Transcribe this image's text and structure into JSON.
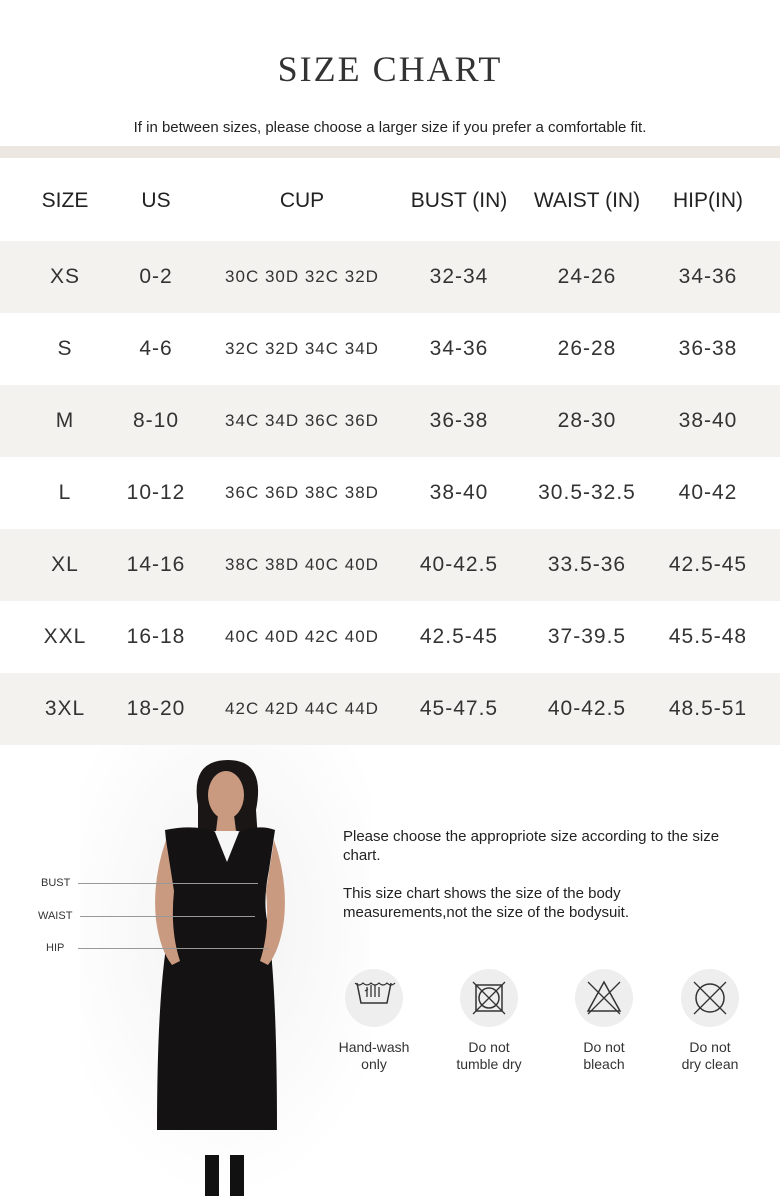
{
  "title": "SIZE CHART",
  "subtitle": "If in between sizes, please choose a larger size if you prefer a comfortable fit.",
  "colors": {
    "band": "#ece8e1",
    "row_shade": "#f4f2ee",
    "text": "#333333"
  },
  "table": {
    "headers": [
      "SIZE",
      "US",
      "CUP",
      "BUST (IN)",
      "WAIST (IN)",
      "HIP(IN)"
    ],
    "rows": [
      [
        "XS",
        "0-2",
        "30C 30D 32C 32D",
        "32-34",
        "24-26",
        "34-36"
      ],
      [
        "S",
        "4-6",
        "32C 32D 34C 34D",
        "34-36",
        "26-28",
        "36-38"
      ],
      [
        "M",
        "8-10",
        "34C 34D 36C 36D",
        "36-38",
        "28-30",
        "38-40"
      ],
      [
        "L",
        "10-12",
        "36C 36D 38C 38D",
        "38-40",
        "30.5-32.5",
        "40-42"
      ],
      [
        "XL",
        "14-16",
        "38C 38D 40C 40D",
        "40-42.5",
        "33.5-36",
        "42.5-45"
      ],
      [
        "XXL",
        "16-18",
        "40C 40D 42C 40D",
        "42.5-45",
        "37-39.5",
        "45.5-48"
      ],
      [
        "3XL",
        "18-20",
        "42C 42D 44C 44D",
        "45-47.5",
        "40-42.5",
        "48.5-51"
      ]
    ]
  },
  "measure_labels": {
    "bust": "BUST",
    "waist": "WAIST",
    "hip": "HIP"
  },
  "info": {
    "line1": "Please choose the appropriote size according to the size chart.",
    "line2": "This size chart shows the size of the body measurements,not the size of the bodysuit."
  },
  "care": [
    {
      "icon": "hand-wash-icon",
      "label1": "Hand-wash",
      "label2": "only"
    },
    {
      "icon": "do-not-tumble-dry-icon",
      "label1": "Do not",
      "label2": "tumble dry"
    },
    {
      "icon": "do-not-bleach-icon",
      "label1": "Do not",
      "label2": "bleach"
    },
    {
      "icon": "do-not-dry-clean-icon",
      "label1": "Do not",
      "label2": "dry clean"
    }
  ]
}
